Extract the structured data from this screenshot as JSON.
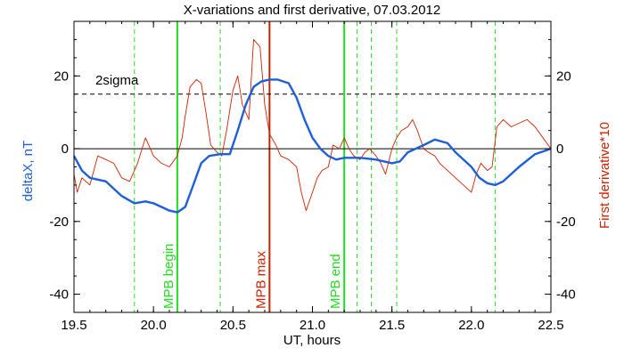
{
  "chart_data": {
    "type": "line",
    "title": "X-variations and first derivative, 07.03.2012",
    "xlabel": "UT, hours",
    "ylabel_left": "deltaX, nT",
    "ylabel_right": "First derivative*10",
    "xlim": [
      19.5,
      22.5
    ],
    "ylim": [
      -45,
      35
    ],
    "x_ticks": [
      "19.5",
      "20.0",
      "20.5",
      "21.0",
      "21.5",
      "22.0",
      "22.5"
    ],
    "y_ticks_left": [
      "-40",
      "-20",
      "0",
      "20"
    ],
    "y_ticks_right": [
      "-40",
      "-20",
      "0",
      "20"
    ],
    "colors": {
      "deltaX": "#1f5fd6",
      "derivative": "#cc2200",
      "marker_green": "#22dd22",
      "marker_red": "#cc2200",
      "axis": "#000000"
    },
    "sigma": {
      "label": "2sigma",
      "value": 15
    },
    "zero_line": 0,
    "vertical_markers": [
      {
        "x": 20.15,
        "label": "MPB begin",
        "color": "#22dd22"
      },
      {
        "x": 20.73,
        "label": "MPB max",
        "color": "#cc2200"
      },
      {
        "x": 21.2,
        "label": "MPB end",
        "color": "#22dd22"
      }
    ],
    "dashed_markers": [
      19.88,
      20.42,
      21.28,
      21.37,
      21.53,
      22.15
    ],
    "series": [
      {
        "name": "deltaX, nT",
        "x": [
          19.5,
          19.55,
          19.6,
          19.7,
          19.8,
          19.88,
          19.95,
          20.0,
          20.05,
          20.1,
          20.15,
          20.2,
          20.25,
          20.3,
          20.35,
          20.42,
          20.48,
          20.53,
          20.58,
          20.63,
          20.68,
          20.73,
          20.78,
          20.85,
          20.9,
          20.95,
          21.0,
          21.05,
          21.1,
          21.15,
          21.2,
          21.25,
          21.3,
          21.4,
          21.5,
          21.55,
          21.6,
          21.7,
          21.77,
          21.85,
          21.9,
          22.0,
          22.05,
          22.1,
          22.15,
          22.2,
          22.3,
          22.4,
          22.5
        ],
        "y": [
          -2,
          -6,
          -8,
          -9,
          -13,
          -15,
          -14.5,
          -15,
          -16,
          -17,
          -17.5,
          -16,
          -10,
          -4,
          -2,
          -1.5,
          -1.5,
          5,
          12,
          17,
          18.5,
          19,
          19,
          18,
          14,
          8,
          3,
          0,
          -2,
          -3,
          -2.5,
          -2.5,
          -2.5,
          -3,
          -4,
          -3.5,
          -1,
          1,
          2.5,
          1.5,
          -1,
          -5,
          -8,
          -9.5,
          -10,
          -9,
          -5,
          -1.5,
          0
        ]
      },
      {
        "name": "First derivative*10",
        "x": [
          19.5,
          19.52,
          19.55,
          19.6,
          19.65,
          19.7,
          19.75,
          19.8,
          19.85,
          19.9,
          19.95,
          20.0,
          20.05,
          20.1,
          20.15,
          20.18,
          20.2,
          20.23,
          20.27,
          20.3,
          20.33,
          20.36,
          20.4,
          20.43,
          20.46,
          20.5,
          20.53,
          20.56,
          20.6,
          20.63,
          20.67,
          20.7,
          20.73,
          20.77,
          20.8,
          20.85,
          20.9,
          20.93,
          20.96,
          21.0,
          21.03,
          21.06,
          21.1,
          21.13,
          21.17,
          21.2,
          21.23,
          21.26,
          21.3,
          21.33,
          21.36,
          21.4,
          21.43,
          21.46,
          21.5,
          21.53,
          21.56,
          21.6,
          21.63,
          21.66,
          21.7,
          21.73,
          21.77,
          21.8,
          21.85,
          21.9,
          21.95,
          22.0,
          22.03,
          22.06,
          22.1,
          22.13,
          22.16,
          22.2,
          22.25,
          22.3,
          22.35,
          22.4,
          22.45,
          22.5
        ],
        "y": [
          -7,
          -12,
          -8,
          -10,
          -2,
          -3,
          -4,
          -8,
          -9,
          -4,
          3,
          -2,
          -4,
          -5,
          -2,
          3,
          9,
          17,
          19,
          18,
          10,
          1,
          -1,
          -2,
          5,
          16,
          20,
          12,
          8,
          30,
          28,
          12,
          4,
          1,
          -2,
          -3,
          -5,
          -12,
          -17,
          -12,
          -8,
          -6,
          -5,
          1,
          0,
          3,
          0,
          -2,
          -3,
          -1,
          0,
          -2,
          -4,
          -7,
          0,
          3,
          5,
          6,
          8,
          5,
          0,
          -1,
          -2,
          -4,
          -6,
          -8,
          -10,
          -12,
          -7,
          -4,
          -6,
          -5,
          6,
          8,
          6,
          7,
          8,
          6,
          3,
          0
        ]
      }
    ]
  }
}
